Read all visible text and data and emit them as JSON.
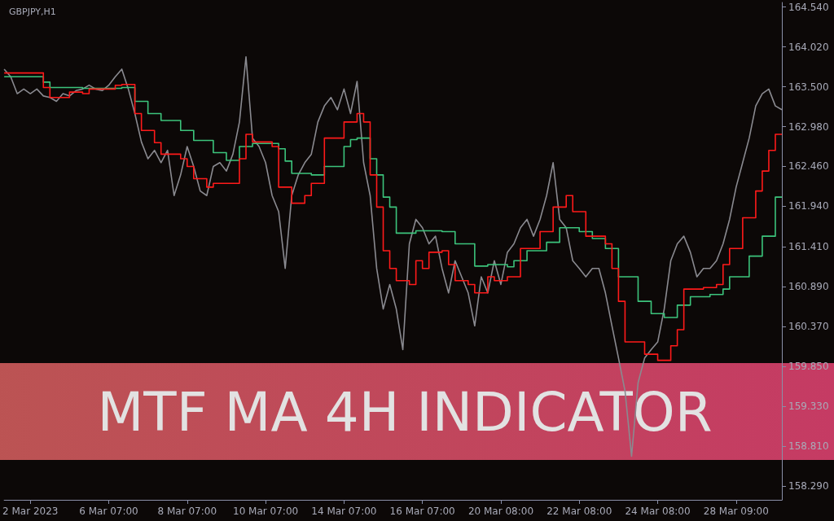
{
  "chart_data": {
    "type": "line",
    "title": "GBPJPY,H1",
    "annotations": [
      "MTF MA 4H INDICATOR"
    ],
    "categories": [
      null,
      null,
      null,
      null,
      "2 Mar 2023",
      null,
      null,
      null,
      null,
      null,
      null,
      null,
      null,
      null,
      null,
      null,
      "6 Mar 07:00",
      null,
      null,
      null,
      null,
      null,
      null,
      null,
      null,
      null,
      null,
      null,
      "8 Mar 07:00",
      null,
      null,
      null,
      null,
      null,
      null,
      null,
      null,
      null,
      null,
      null,
      "10 Mar 07:00",
      null,
      null,
      null,
      null,
      null,
      null,
      null,
      null,
      null,
      null,
      null,
      "14 Mar 07:00",
      null,
      null,
      null,
      null,
      null,
      null,
      null,
      null,
      null,
      null,
      null,
      "16 Mar 07:00",
      null,
      null,
      null,
      null,
      null,
      null,
      null,
      null,
      null,
      null,
      null,
      "20 Mar 08:00",
      null,
      null,
      null,
      null,
      null,
      null,
      null,
      null,
      null,
      null,
      null,
      "22 Mar 08:00",
      null,
      null,
      null,
      null,
      null,
      null,
      null,
      null,
      null,
      null,
      null,
      "24 Mar 08:00",
      null,
      null,
      null,
      null,
      null,
      null,
      null,
      null,
      null,
      null,
      null,
      "28 Mar 09:00",
      null,
      null,
      null,
      null,
      null,
      null,
      null
    ],
    "ylim": [
      158.11,
      164.6
    ],
    "yticks": [
      {
        "value": 164.54,
        "label": "164.540"
      },
      {
        "value": 164.02,
        "label": "164.020"
      },
      {
        "value": 163.5,
        "label": "163.500"
      },
      {
        "value": 162.98,
        "label": "162.980"
      },
      {
        "value": 162.46,
        "label": "162.460"
      },
      {
        "value": 161.94,
        "label": "161.940"
      },
      {
        "value": 161.41,
        "label": "161.410"
      },
      {
        "value": 160.89,
        "label": "160.890"
      },
      {
        "value": 160.37,
        "label": "160.370"
      },
      {
        "value": 159.85,
        "label": "159.850"
      },
      {
        "value": 159.33,
        "label": "159.330"
      },
      {
        "value": 158.81,
        "label": "158.810"
      },
      {
        "value": 158.29,
        "label": "158.290"
      }
    ],
    "grid": false,
    "marker": "none",
    "series": [
      {
        "color": "#8a8a90",
        "values": [
          163.73,
          163.63,
          163.41,
          163.47,
          163.41,
          163.47,
          163.38,
          163.36,
          163.31,
          163.41,
          163.38,
          163.45,
          163.47,
          163.52,
          163.47,
          163.45,
          163.52,
          163.63,
          163.73,
          163.47,
          163.15,
          162.78,
          162.56,
          162.67,
          162.51,
          162.67,
          162.08,
          162.35,
          162.72,
          162.46,
          162.14,
          162.08,
          162.46,
          162.51,
          162.4,
          162.62,
          163.04,
          163.89,
          162.83,
          162.72,
          162.51,
          162.08,
          161.87,
          161.13,
          162.08,
          162.35,
          162.51,
          162.62,
          163.04,
          163.25,
          163.36,
          163.2,
          163.47,
          163.15,
          163.57,
          162.51,
          162.08,
          161.13,
          160.6,
          160.92,
          160.6,
          160.07,
          161.45,
          161.77,
          161.66,
          161.45,
          161.55,
          161.13,
          160.81,
          161.23,
          161.02,
          160.81,
          160.38,
          161.02,
          160.81,
          161.23,
          160.92,
          161.34,
          161.45,
          161.66,
          161.77,
          161.55,
          161.77,
          162.08,
          162.51,
          161.77,
          161.66,
          161.23,
          161.13,
          161.02,
          161.13,
          161.13,
          160.81,
          160.38,
          159.96,
          159.53,
          158.68,
          159.64,
          159.96,
          160.07,
          160.17,
          160.6,
          161.23,
          161.45,
          161.55,
          161.34,
          161.02,
          161.13,
          161.13,
          161.23,
          161.45,
          161.77,
          162.19,
          162.51,
          162.83,
          163.25,
          163.41,
          163.47,
          163.25,
          163.2
        ]
      },
      {
        "type": "step",
        "color": "#3cc47c",
        "values": [
          163.63,
          163.63,
          163.63,
          163.63,
          163.63,
          163.63,
          163.56,
          163.49,
          163.49,
          163.49,
          163.49,
          163.49,
          163.48,
          163.48,
          163.48,
          163.48,
          163.48,
          163.48,
          163.49,
          163.49,
          163.31,
          163.31,
          163.15,
          163.15,
          163.06,
          163.06,
          163.06,
          162.93,
          162.93,
          162.8,
          162.8,
          162.8,
          162.64,
          162.64,
          162.54,
          162.54,
          162.72,
          162.72,
          162.76,
          162.76,
          162.76,
          162.76,
          162.69,
          162.53,
          162.37,
          162.37,
          162.37,
          162.35,
          162.35,
          162.46,
          162.46,
          162.46,
          162.72,
          162.81,
          162.83,
          162.83,
          162.56,
          162.35,
          162.06,
          161.93,
          161.59,
          161.59,
          161.59,
          161.62,
          161.62,
          161.62,
          161.62,
          161.61,
          161.61,
          161.45,
          161.45,
          161.45,
          161.16,
          161.16,
          161.18,
          161.18,
          161.18,
          161.15,
          161.23,
          161.23,
          161.36,
          161.36,
          161.36,
          161.47,
          161.47,
          161.66,
          161.66,
          161.66,
          161.61,
          161.61,
          161.52,
          161.52,
          161.39,
          161.39,
          161.02,
          161.02,
          161.02,
          160.7,
          160.7,
          160.54,
          160.54,
          160.49,
          160.49,
          160.65,
          160.65,
          160.76,
          160.76,
          160.76,
          160.79,
          160.79,
          160.86,
          161.02,
          161.02,
          161.02,
          161.29,
          161.29,
          161.55,
          161.55,
          162.06,
          162.06
        ]
      },
      {
        "type": "step",
        "color": "#ff1a1a",
        "values": [
          163.68,
          163.68,
          163.68,
          163.68,
          163.68,
          163.68,
          163.49,
          163.36,
          163.36,
          163.36,
          163.43,
          163.43,
          163.41,
          163.47,
          163.47,
          163.47,
          163.47,
          163.52,
          163.53,
          163.53,
          163.15,
          162.93,
          162.93,
          162.77,
          162.62,
          162.62,
          162.62,
          162.56,
          162.46,
          162.3,
          162.3,
          162.19,
          162.24,
          162.24,
          162.24,
          162.24,
          162.56,
          162.88,
          162.78,
          162.78,
          162.78,
          162.72,
          162.19,
          162.19,
          161.98,
          161.98,
          162.08,
          162.24,
          162.24,
          162.83,
          162.83,
          162.83,
          163.04,
          163.04,
          163.15,
          163.04,
          162.35,
          161.93,
          161.36,
          161.13,
          160.97,
          160.97,
          160.92,
          161.23,
          161.13,
          161.34,
          161.34,
          161.36,
          161.18,
          160.97,
          160.97,
          160.92,
          160.81,
          160.81,
          161.02,
          160.97,
          160.97,
          161.02,
          161.02,
          161.39,
          161.39,
          161.39,
          161.61,
          161.61,
          161.93,
          161.93,
          162.08,
          161.87,
          161.87,
          161.55,
          161.55,
          161.55,
          161.45,
          161.13,
          160.7,
          160.17,
          160.17,
          160.17,
          160.01,
          160.01,
          159.93,
          159.93,
          160.12,
          160.33,
          160.86,
          160.86,
          160.86,
          160.88,
          160.88,
          160.92,
          161.18,
          161.39,
          161.39,
          161.79,
          161.79,
          162.14,
          162.4,
          162.67,
          162.88,
          162.88
        ]
      }
    ]
  }
}
